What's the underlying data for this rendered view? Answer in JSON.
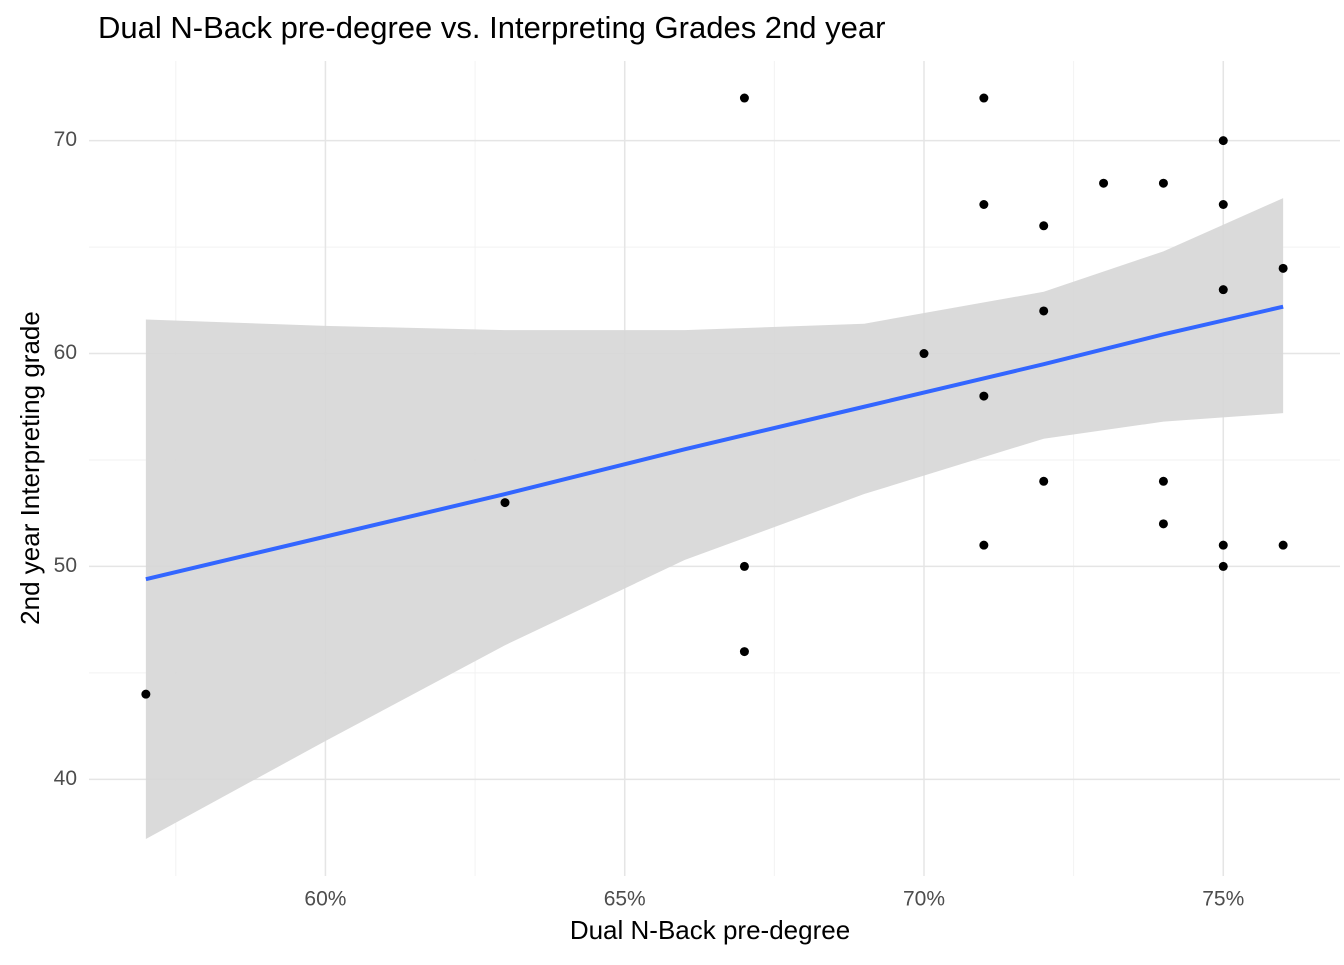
{
  "chart_data": {
    "type": "scatter",
    "title": "Dual N-Back pre-degree vs. Interpreting Grades 2nd year",
    "x_label": "Dual N-Back pre-degree",
    "y_label": "2nd year Interpreting grade",
    "x": [
      57,
      63,
      67,
      67,
      67,
      70,
      71,
      71,
      71,
      71,
      72,
      72,
      72,
      73,
      74,
      74,
      74,
      75,
      75,
      75,
      75,
      75,
      76,
      76
    ],
    "y": [
      44,
      53,
      72,
      50,
      46,
      60,
      72,
      67,
      58,
      51,
      66,
      62,
      54,
      68,
      68,
      54,
      52,
      70,
      67,
      63,
      51,
      50,
      64,
      51
    ],
    "color": "#000000",
    "fit": {
      "x": [
        57,
        60,
        63,
        66,
        69,
        72,
        74,
        76
      ],
      "y": [
        49.4,
        51.4,
        53.4,
        55.5,
        57.5,
        59.5,
        60.9,
        62.2
      ],
      "lower": [
        37.2,
        41.8,
        46.3,
        50.3,
        53.4,
        56.0,
        56.8,
        57.2
      ],
      "upper": [
        61.6,
        61.3,
        61.1,
        61.1,
        61.4,
        62.9,
        64.8,
        67.3
      ],
      "color": "#3366ff",
      "band_color": "#d6d6d6"
    },
    "xlim": [
      56.05,
      76.95
    ],
    "ylim": [
      35.46,
      73.74
    ],
    "xticks": [
      {
        "value": 60,
        "label": "60%"
      },
      {
        "value": 65,
        "label": "65%"
      },
      {
        "value": 70,
        "label": "70%"
      },
      {
        "value": 75,
        "label": "75%"
      }
    ],
    "x_minor_ticks": [
      57.5,
      62.5,
      67.5,
      72.5
    ],
    "yticks": [
      40,
      50,
      60,
      70
    ],
    "y_minor_ticks": [
      45,
      55,
      65
    ],
    "grid": true
  }
}
